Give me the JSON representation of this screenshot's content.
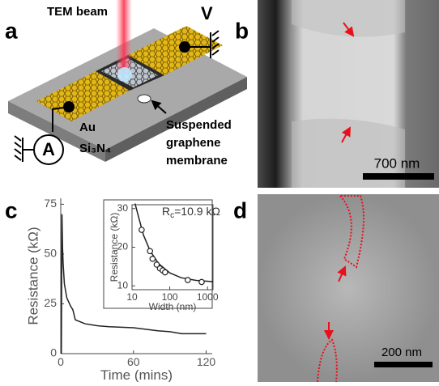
{
  "panel_labels": [
    "a",
    "b",
    "c",
    "d"
  ],
  "panel_a": {
    "beam_label": "TEM beam",
    "voltage_label": "V",
    "ammeter_label": "A",
    "electrode_label": "Au",
    "substrate_label": "Si₃N₄",
    "membrane_label": [
      "Suspended",
      "graphene",
      "membrane"
    ]
  },
  "panel_b": {
    "scale_bar": "700 nm"
  },
  "panel_d": {
    "scale_bar": "200 nm"
  },
  "chart_data": [
    {
      "type": "line",
      "x_label": "Time (mins)",
      "y_label": "Resistance (kΩ)",
      "x": [
        0.5,
        1,
        1.5,
        2,
        3,
        5,
        8,
        10,
        12,
        20,
        30,
        40,
        60,
        80,
        90,
        100,
        120
      ],
      "values": [
        0,
        70,
        53,
        45,
        35,
        28,
        24,
        22,
        17,
        15,
        14,
        13.5,
        13,
        11.5,
        11,
        10,
        10
      ],
      "color": "#222222",
      "xlim": [
        0,
        125
      ],
      "ylim": [
        0,
        78
      ],
      "xticks": [
        0,
        60,
        120
      ],
      "yticks": [
        0,
        25,
        50,
        75
      ]
    },
    {
      "type": "scatter",
      "annotation": {
        "symbol": "R",
        "subscript": "c",
        "text": "=10.9 kΩ"
      },
      "x_label": "Width (nm)",
      "y_label": "Resistance (kΩ)",
      "x": [
        18,
        30,
        35,
        45,
        55,
        65,
        75,
        300,
        700
      ],
      "values": [
        24.5,
        19,
        17,
        15.5,
        14.5,
        14,
        13.5,
        11.5,
        11
      ],
      "fit": {
        "x": [
          12,
          20,
          30,
          50,
          100,
          200,
          500,
          1400
        ],
        "values": [
          31.3,
          23.2,
          19.1,
          15.8,
          13.35,
          12.1,
          11.4,
          11.08
        ]
      },
      "color": "#222222",
      "log_x": true,
      "xlim": [
        10,
        1400
      ],
      "ylim": [
        9,
        31
      ],
      "xticks": [
        10,
        100,
        1000
      ],
      "yticks": [
        10,
        20,
        30
      ]
    }
  ]
}
